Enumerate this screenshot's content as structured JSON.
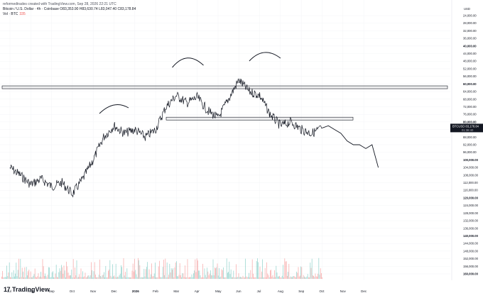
{
  "header": {
    "line1": "reformedtrades created with TradingView.com, Sep 28, 2026 22:21 UTC",
    "line2": "Bitcoin / U.S. Dollar · 4h · Coinbase  O83,353.90  H83,630.74  L83,047.40  C83,178.84",
    "vol_label": "Vol · BTC",
    "vol_value": "335"
  },
  "footer": {
    "brand": "TradingView",
    "mark": "17"
  },
  "price_tag": {
    "symbol": "BTCUSD",
    "price": "83,178.84",
    "countdown": "01:38:40"
  },
  "chart_data": {
    "type": "line",
    "yaxis_unit": "USD",
    "yaxis_scale": "inverted (higher prices lower on axis)",
    "y_ticks": [
      "24,000.00",
      "28,000.00",
      "32,000.00",
      "36,000.00",
      "40,000.00",
      "44,000.00",
      "48,000.00",
      "52,000.00",
      "56,000.00",
      "60,000.00",
      "64,000.00",
      "68,000.00",
      "72,000.00",
      "76,000.00",
      "80,000.00",
      "84,000.00",
      "88,000.00",
      "92,000.00",
      "96,000.00",
      "100,000.00",
      "104,000.00",
      "108,000.00",
      "112,000.00",
      "116,000.00",
      "120,000.00",
      "124,000.00",
      "128,000.00",
      "132,000.00",
      "136,000.00",
      "140,000.00",
      "144,000.00",
      "148,000.00",
      "152,000.00",
      "156,000.00",
      "160,000.00"
    ],
    "y_ticks_bold": [
      "40,000.00",
      "60,000.00",
      "80,000.00",
      "100,000.00",
      "120,000.00",
      "140,000.00",
      "160,000.00"
    ],
    "y_range": [
      24000,
      160000
    ],
    "months": [
      "Jul",
      "Aug",
      "Sep",
      "Oct",
      "Nov",
      "Dec",
      "2026",
      "Feb",
      "Mar",
      "Apr",
      "May",
      "Jun",
      "Jul",
      "Aug",
      "Sep",
      "Oct",
      "Nov",
      "Dec"
    ],
    "bold_month": "2026",
    "price_series": {
      "name": "BTCUSD",
      "x": [
        0,
        0.5,
        1,
        1.5,
        2,
        2.5,
        3,
        3.5,
        4,
        4.5,
        5,
        5.5,
        6,
        6.5,
        7,
        7.5,
        8,
        8.5,
        9,
        9.5,
        10,
        10.5,
        11,
        11.5,
        12,
        12.5,
        13,
        13.5,
        14,
        14.5,
        15
      ],
      "y": [
        104000,
        108000,
        113000,
        110000,
        114000,
        112000,
        118000,
        110000,
        100000,
        88000,
        82000,
        86000,
        84000,
        88000,
        84000,
        72000,
        66000,
        70000,
        67000,
        74000,
        78000,
        68000,
        58000,
        64000,
        66000,
        76000,
        82000,
        80000,
        84000,
        86000,
        83178
      ]
    },
    "projection_series": {
      "name": "projection",
      "x": [
        15,
        15.3,
        15.6,
        15.9,
        16.2,
        16.5,
        16.8,
        17.1,
        17.4,
        17.7
      ],
      "y": [
        83178,
        82000,
        84000,
        86000,
        90000,
        92000,
        92000,
        94000,
        92000,
        104000
      ]
    },
    "resistance_zone": [
      61000,
      62500
    ],
    "support_zone": [
      77500,
      79000
    ],
    "annotations": [
      "arc-nov",
      "arc-feb",
      "arc-jun"
    ]
  }
}
